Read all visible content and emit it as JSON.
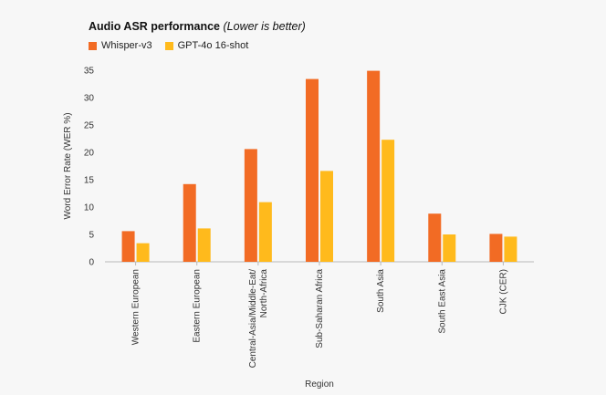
{
  "chart_data": {
    "type": "bar",
    "title": "Audio ASR performance",
    "subtitle": "(Lower is better)",
    "xlabel": "Region",
    "ylabel": "Word Error Rate (WER %)",
    "ylim": [
      0,
      35
    ],
    "yticks": [
      0,
      5,
      10,
      15,
      20,
      25,
      30,
      35
    ],
    "categories": [
      "Western European",
      "Eastern European",
      "Central-Asia/Middle-Eat/ North-Africa",
      "Sub-Saharan Africa",
      "South Asia",
      "South East Asia",
      "CJK (CER)"
    ],
    "series": [
      {
        "name": "Whisper-v3",
        "color": "#f26b24",
        "values": [
          5.6,
          14.2,
          20.6,
          33.4,
          34.9,
          8.8,
          5.1
        ]
      },
      {
        "name": "GPT-4o 16-shot",
        "color": "#ffba1c",
        "values": [
          3.4,
          6.1,
          10.9,
          16.6,
          22.3,
          5.0,
          4.6
        ]
      }
    ]
  }
}
